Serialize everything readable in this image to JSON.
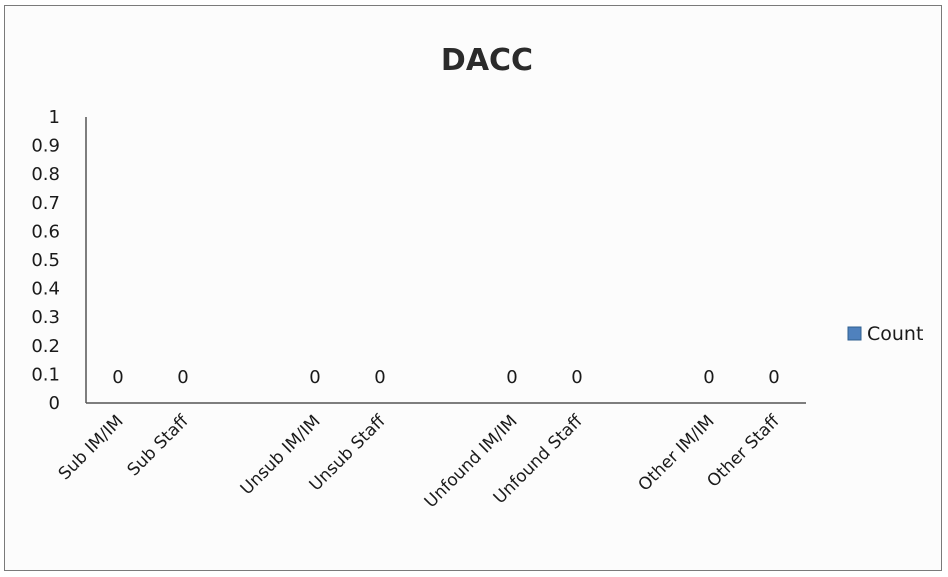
{
  "chart_data": {
    "type": "bar",
    "title": "DACC",
    "categories": [
      "Sub IM/IM",
      "Sub Staff",
      "Unsub IM/IM",
      "Unsub Staff",
      "Unfound IM/IM",
      "Unfound Staff",
      "Other IM/IM",
      "Other Staff"
    ],
    "series": [
      {
        "name": "Count",
        "values": [
          0,
          0,
          0,
          0,
          0,
          0,
          0,
          0
        ]
      }
    ],
    "data_labels": [
      "0",
      "0",
      "0",
      "0",
      "0",
      "0",
      "0",
      "0"
    ],
    "yticks": [
      "0",
      "0.1",
      "0.2",
      "0.3",
      "0.4",
      "0.5",
      "0.6",
      "0.7",
      "0.8",
      "0.9",
      "1"
    ],
    "ylim": [
      0,
      1
    ],
    "grid": false,
    "legend_position": "right",
    "series_color": "#4f81bd"
  }
}
